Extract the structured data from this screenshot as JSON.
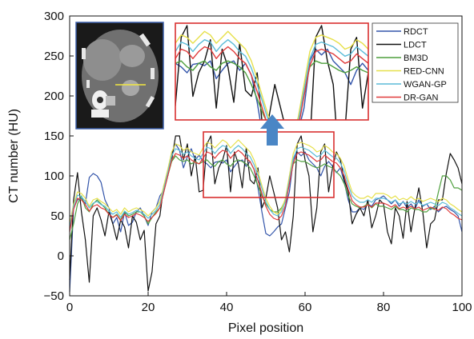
{
  "chart_data": {
    "type": "line",
    "xlabel": "Pixel position",
    "ylabel": "CT number (HU)",
    "xlim": [
      0,
      100
    ],
    "ylim": [
      -50,
      300
    ],
    "xticks": [
      0,
      20,
      40,
      60,
      80,
      100
    ],
    "yticks": [
      -50,
      0,
      50,
      100,
      150,
      200,
      250,
      300
    ],
    "grid": false,
    "legend_position": "top-right",
    "x": [
      0,
      1,
      2,
      3,
      4,
      5,
      6,
      7,
      8,
      9,
      10,
      11,
      12,
      13,
      14,
      15,
      16,
      17,
      18,
      19,
      20,
      21,
      22,
      23,
      24,
      25,
      26,
      27,
      28,
      29,
      30,
      31,
      32,
      33,
      34,
      35,
      36,
      37,
      38,
      39,
      40,
      41,
      42,
      43,
      44,
      45,
      46,
      47,
      48,
      49,
      50,
      51,
      52,
      53,
      54,
      55,
      56,
      57,
      58,
      59,
      60,
      61,
      62,
      63,
      64,
      65,
      66,
      67,
      68,
      69,
      70,
      71,
      72,
      73,
      74,
      75,
      76,
      77,
      78,
      79,
      80,
      81,
      82,
      83,
      84,
      85,
      86,
      87,
      88,
      89,
      90,
      91,
      92,
      93,
      94,
      95,
      96,
      97,
      98,
      99,
      100
    ],
    "series": [
      {
        "name": "RDCT",
        "color": "#3355aa",
        "values": [
          -45,
          60,
          70,
          72,
          65,
          98,
          103,
          100,
          92,
          70,
          60,
          40,
          48,
          30,
          55,
          38,
          42,
          55,
          60,
          50,
          38,
          55,
          60,
          75,
          82,
          100,
          128,
          140,
          132,
          110,
          124,
          134,
          120,
          126,
          118,
          115,
          110,
          117,
          118,
          116,
          120,
          105,
          112,
          118,
          120,
          112,
          118,
          108,
          85,
          55,
          28,
          25,
          30,
          36,
          40,
          60,
          80,
          120,
          130,
          125,
          130,
          120,
          115,
          110,
          100,
          112,
          118,
          112,
          104,
          110,
          92,
          70,
          55,
          55,
          60,
          58,
          65,
          62,
          70,
          72,
          75,
          70,
          65,
          70,
          62,
          68,
          60,
          65,
          58,
          70,
          62,
          65,
          58,
          62,
          55,
          60,
          62,
          58,
          55,
          50,
          30
        ]
      },
      {
        "name": "LDCT",
        "color": "#111111",
        "values": [
          -30,
          70,
          104,
          55,
          20,
          -33,
          50,
          60,
          45,
          25,
          55,
          40,
          20,
          45,
          36,
          10,
          50,
          42,
          20,
          32,
          -44,
          -20,
          40,
          50,
          88,
          100,
          120,
          150,
          150,
          120,
          140,
          100,
          125,
          80,
          82,
          140,
          150,
          90,
          110,
          120,
          138,
          80,
          130,
          115,
          85,
          135,
          95,
          90,
          110,
          60,
          72,
          100,
          80,
          60,
          20,
          30,
          5,
          50,
          140,
          150,
          120,
          100,
          30,
          60,
          130,
          140,
          80,
          110,
          130,
          120,
          95,
          80,
          40,
          52,
          60,
          50,
          70,
          35,
          50,
          70,
          65,
          30,
          15,
          60,
          50,
          22,
          68,
          30,
          60,
          85,
          55,
          10,
          40,
          45,
          70,
          70,
          103,
          128,
          120,
          110,
          90
        ]
      },
      {
        "name": "BM3D",
        "color": "#4e9f3d",
        "values": [
          20,
          40,
          65,
          75,
          60,
          55,
          65,
          70,
          65,
          60,
          52,
          48,
          52,
          45,
          55,
          50,
          52,
          55,
          55,
          50,
          40,
          48,
          55,
          60,
          80,
          100,
          118,
          125,
          120,
          118,
          120,
          115,
          118,
          115,
          118,
          120,
          115,
          112,
          118,
          120,
          115,
          112,
          118,
          120,
          118,
          115,
          110,
          100,
          88,
          75,
          65,
          58,
          55,
          55,
          60,
          70,
          95,
          115,
          120,
          118,
          118,
          115,
          112,
          110,
          112,
          115,
          112,
          110,
          105,
          100,
          90,
          75,
          65,
          62,
          60,
          62,
          65,
          60,
          65,
          62,
          62,
          60,
          58,
          62,
          58,
          58,
          55,
          60,
          58,
          58,
          55,
          55,
          60,
          58,
          80,
          100,
          100,
          95,
          85,
          85,
          82
        ]
      },
      {
        "name": "RED-CNN",
        "color": "#e6e04a",
        "values": [
          40,
          65,
          80,
          78,
          72,
          62,
          70,
          72,
          68,
          65,
          60,
          55,
          58,
          52,
          60,
          55,
          58,
          60,
          58,
          55,
          50,
          55,
          60,
          68,
          88,
          108,
          130,
          140,
          138,
          132,
          135,
          130,
          128,
          126,
          135,
          142,
          140,
          135,
          140,
          145,
          142,
          135,
          140,
          145,
          140,
          135,
          130,
          120,
          105,
          88,
          72,
          62,
          55,
          52,
          58,
          72,
          100,
          128,
          140,
          142,
          140,
          138,
          135,
          130,
          132,
          138,
          135,
          130,
          128,
          122,
          112,
          95,
          80,
          75,
          72,
          72,
          75,
          72,
          78,
          78,
          78,
          76,
          72,
          75,
          70,
          72,
          70,
          74,
          70,
          72,
          68,
          70,
          72,
          70,
          68,
          72,
          70,
          65,
          62,
          58,
          55
        ]
      },
      {
        "name": "WGAN-GP",
        "color": "#5bbcd8",
        "values": [
          35,
          62,
          76,
          74,
          68,
          60,
          66,
          68,
          64,
          62,
          56,
          52,
          55,
          48,
          56,
          52,
          54,
          57,
          55,
          52,
          47,
          52,
          57,
          64,
          84,
          104,
          125,
          134,
          132,
          127,
          130,
          125,
          122,
          120,
          128,
          136,
          134,
          128,
          134,
          138,
          136,
          128,
          134,
          138,
          134,
          128,
          124,
          114,
          100,
          84,
          68,
          58,
          52,
          50,
          55,
          68,
          95,
          122,
          134,
          136,
          134,
          132,
          128,
          124,
          126,
          132,
          128,
          124,
          122,
          116,
          106,
          89,
          75,
          70,
          67,
          67,
          70,
          67,
          72,
          72,
          72,
          70,
          67,
          70,
          65,
          67,
          65,
          68,
          65,
          67,
          63,
          65,
          67,
          65,
          63,
          67,
          65,
          60,
          57,
          53,
          50
        ]
      },
      {
        "name": "DR-GAN",
        "color": "#e03a3a",
        "values": [
          30,
          58,
          72,
          70,
          64,
          56,
          62,
          64,
          60,
          58,
          52,
          48,
          51,
          44,
          52,
          48,
          50,
          53,
          51,
          48,
          43,
          48,
          53,
          60,
          80,
          100,
          120,
          128,
          126,
          122,
          125,
          120,
          117,
          115,
          122,
          130,
          128,
          122,
          128,
          132,
          130,
          122,
          128,
          132,
          128,
          122,
          118,
          108,
          94,
          78,
          62,
          52,
          47,
          45,
          50,
          63,
          90,
          116,
          128,
          130,
          128,
          126,
          122,
          118,
          120,
          126,
          122,
          118,
          116,
          110,
          100,
          83,
          69,
          64,
          61,
          61,
          64,
          61,
          66,
          66,
          66,
          64,
          61,
          64,
          59,
          61,
          59,
          62,
          59,
          61,
          57,
          59,
          61,
          59,
          57,
          61,
          59,
          54,
          51,
          47,
          45
        ]
      }
    ],
    "inset_zoom": {
      "x_range": [
        34,
        67
      ],
      "y_range": [
        70,
        152
      ]
    }
  }
}
